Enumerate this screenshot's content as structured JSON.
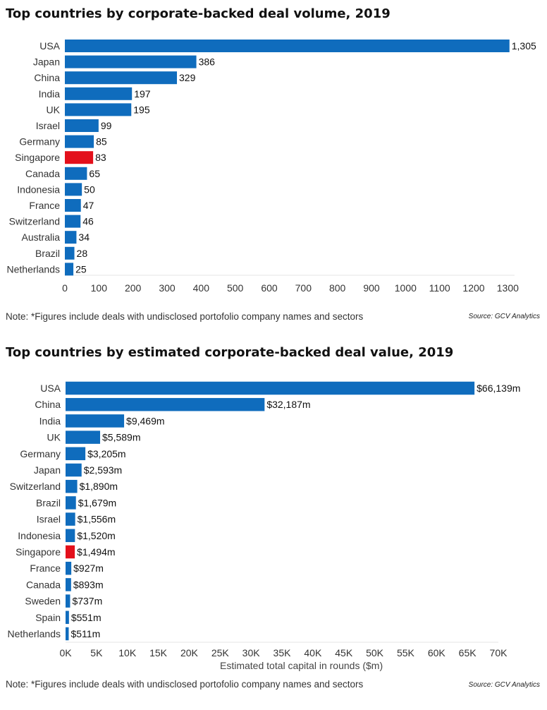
{
  "chart_data": [
    {
      "type": "bar",
      "orientation": "horizontal",
      "title": "Top countries by corporate-backed deal volume, 2019",
      "categories": [
        "USA",
        "Japan",
        "China",
        "India",
        "UK",
        "Israel",
        "Germany",
        "Singapore",
        "Canada",
        "Indonesia",
        "France",
        "Switzerland",
        "Australia",
        "Brazil",
        "Netherlands"
      ],
      "values": [
        1305,
        386,
        329,
        197,
        195,
        99,
        85,
        83,
        65,
        50,
        47,
        46,
        34,
        28,
        25
      ],
      "value_labels": [
        "1,305",
        "386",
        "329",
        "197",
        "195",
        "99",
        "85",
        "83",
        "65",
        "50",
        "47",
        "46",
        "34",
        "28",
        "25"
      ],
      "highlight": "Singapore",
      "xlim": [
        0,
        1320
      ],
      "xticks": [
        0,
        100,
        200,
        300,
        400,
        500,
        600,
        700,
        800,
        900,
        1000,
        1100,
        1200,
        1300
      ],
      "xtick_labels": [
        "0",
        "100",
        "200",
        "300",
        "400",
        "500",
        "600",
        "700",
        "800",
        "900",
        "1000",
        "1100",
        "1200",
        "1300"
      ],
      "xlabel": "",
      "grid": false
    },
    {
      "type": "bar",
      "orientation": "horizontal",
      "title": "Top countries by estimated corporate-backed deal value, 2019",
      "categories": [
        "USA",
        "China",
        "India",
        "UK",
        "Germany",
        "Japan",
        "Switzerland",
        "Brazil",
        "Israel",
        "Indonesia",
        "Singapore",
        "France",
        "Canada",
        "Sweden",
        "Spain",
        "Netherlands"
      ],
      "values": [
        66139,
        32187,
        9469,
        5589,
        3205,
        2593,
        1890,
        1679,
        1556,
        1520,
        1494,
        927,
        893,
        737,
        551,
        511
      ],
      "value_labels": [
        "$66,139m",
        "$32,187m",
        "$9,469m",
        "$5,589m",
        "$3,205m",
        "$2,593m",
        "$1,890m",
        "$1,679m",
        "$1,556m",
        "$1,520m",
        "$1,494m",
        "$927m",
        "$893m",
        "$737m",
        "$551m",
        "$511m"
      ],
      "highlight": "Singapore",
      "xlim": [
        0,
        70000
      ],
      "xticks": [
        0,
        5000,
        10000,
        15000,
        20000,
        25000,
        30000,
        35000,
        40000,
        45000,
        50000,
        55000,
        60000,
        65000,
        70000
      ],
      "xtick_labels": [
        "0K",
        "5K",
        "10K",
        "15K",
        "20K",
        "25K",
        "30K",
        "35K",
        "40K",
        "45K",
        "50K",
        "55K",
        "60K",
        "65K",
        "70K"
      ],
      "xlabel": "Estimated total capital in rounds ($m)",
      "grid": false
    }
  ],
  "colors": {
    "bar": "#0f6cbd",
    "highlight": "#e3101b"
  },
  "notes": {
    "note1": "Note: *Figures include deals with undisclosed portofolio company names and sectors",
    "source1": "Source: GCV Analytics",
    "note2": "Note: *Figures include deals with undisclosed portofolio company names and sectors",
    "source2": "Source: GCV Analytics"
  }
}
